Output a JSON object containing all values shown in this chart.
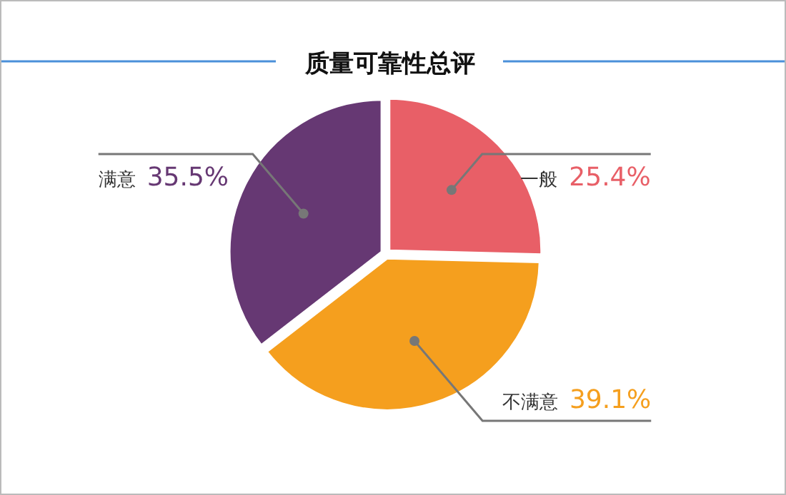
{
  "chart_data": {
    "type": "pie",
    "title": "质量可靠性总评",
    "categories": [
      "一般",
      "不满意",
      "满意"
    ],
    "values": [
      25.4,
      39.1,
      35.5
    ],
    "colors": [
      "#e85f67",
      "#f59f1e",
      "#663873"
    ],
    "value_labels": [
      "25.4%",
      "39.1%",
      "35.5%"
    ]
  }
}
